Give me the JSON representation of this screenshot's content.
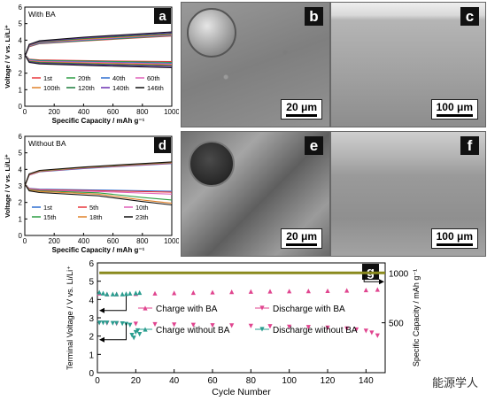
{
  "panels": {
    "a": {
      "label": "a",
      "title": "With BA",
      "ylabel": "Voltage / V vs. Li/Li⁺",
      "xlabel": "Specific Capacity / mAh g⁻¹",
      "xticks": [
        "0",
        "200",
        "400",
        "600",
        "800",
        "1000"
      ],
      "yticks": [
        "0",
        "1",
        "2",
        "3",
        "4",
        "5",
        "6"
      ]
    },
    "b": {
      "label": "b",
      "scale": "20 μm"
    },
    "c": {
      "label": "c",
      "scale": "100 μm"
    },
    "d": {
      "label": "d",
      "title": "Without BA",
      "ylabel": "Voltage / V vs. Li/Li⁺",
      "xlabel": "Specific Capacity / mAh g⁻¹",
      "xticks": [
        "0",
        "200",
        "400",
        "600",
        "800",
        "1000"
      ],
      "yticks": [
        "0",
        "1",
        "2",
        "3",
        "4",
        "5",
        "6"
      ]
    },
    "e": {
      "label": "e",
      "scale": "20 μm"
    },
    "f": {
      "label": "f",
      "scale": "100 μm"
    },
    "g": {
      "label": "g",
      "ylabel": "Terminal Voltage / V vs. Li/Li⁺",
      "ylabel2": "Specific Capacity / mAh g⁻¹",
      "xlabel": "Cycle Number",
      "xticks": [
        "0",
        "20",
        "40",
        "60",
        "80",
        "100",
        "120",
        "140"
      ],
      "yticks": [
        "0",
        "1",
        "2",
        "3",
        "4",
        "5",
        "6"
      ],
      "y2ticks": [
        "500",
        "1000"
      ]
    }
  },
  "watermark": "能源学人",
  "chart_data": [
    {
      "type": "line",
      "panel": "a",
      "title": "With BA",
      "xlabel": "Specific Capacity / mAh g⁻¹",
      "ylabel": "Voltage / V vs. Li/Li⁺",
      "xlim": [
        0,
        1000
      ],
      "ylim": [
        0,
        6
      ],
      "series": [
        {
          "name": "1st",
          "color": "#e8383d",
          "charge": [
            [
              0,
              3.0
            ],
            [
              30,
              3.6
            ],
            [
              100,
              3.78
            ],
            [
              400,
              3.95
            ],
            [
              700,
              4.1
            ],
            [
              1000,
              4.25
            ]
          ],
          "discharge": [
            [
              0,
              3.1
            ],
            [
              30,
              2.85
            ],
            [
              100,
              2.8
            ],
            [
              500,
              2.75
            ],
            [
              1000,
              2.7
            ]
          ]
        },
        {
          "name": "20th",
          "color": "#2e9e44",
          "charge": [
            [
              0,
              3.0
            ],
            [
              30,
              3.62
            ],
            [
              100,
              3.8
            ],
            [
              400,
              3.97
            ],
            [
              700,
              4.12
            ],
            [
              1000,
              4.28
            ]
          ],
          "discharge": [
            [
              0,
              3.1
            ],
            [
              30,
              2.83
            ],
            [
              100,
              2.77
            ],
            [
              500,
              2.72
            ],
            [
              1000,
              2.65
            ]
          ]
        },
        {
          "name": "40th",
          "color": "#2f6fd0",
          "charge": [
            [
              0,
              3.0
            ],
            [
              30,
              3.64
            ],
            [
              100,
              3.82
            ],
            [
              400,
              4.0
            ],
            [
              700,
              4.15
            ],
            [
              1000,
              4.3
            ]
          ],
          "discharge": [
            [
              0,
              3.1
            ],
            [
              30,
              2.8
            ],
            [
              100,
              2.74
            ],
            [
              500,
              2.68
            ],
            [
              1000,
              2.6
            ]
          ]
        },
        {
          "name": "60th",
          "color": "#e060b8",
          "charge": [
            [
              0,
              3.0
            ],
            [
              30,
              3.66
            ],
            [
              100,
              3.85
            ],
            [
              400,
              4.03
            ],
            [
              700,
              4.18
            ],
            [
              1000,
              4.33
            ]
          ],
          "discharge": [
            [
              0,
              3.1
            ],
            [
              30,
              2.77
            ],
            [
              100,
              2.71
            ],
            [
              500,
              2.65
            ],
            [
              1000,
              2.55
            ]
          ]
        },
        {
          "name": "100th",
          "color": "#e0822a",
          "charge": [
            [
              0,
              3.0
            ],
            [
              30,
              3.68
            ],
            [
              100,
              3.88
            ],
            [
              400,
              4.06
            ],
            [
              700,
              4.21
            ],
            [
              1000,
              4.36
            ]
          ],
          "discharge": [
            [
              0,
              3.1
            ],
            [
              30,
              2.74
            ],
            [
              100,
              2.68
            ],
            [
              500,
              2.6
            ],
            [
              1000,
              2.5
            ]
          ]
        },
        {
          "name": "120th",
          "color": "#1a7a3a",
          "charge": [
            [
              0,
              3.0
            ],
            [
              30,
              3.7
            ],
            [
              100,
              3.9
            ],
            [
              400,
              4.1
            ],
            [
              700,
              4.25
            ],
            [
              1000,
              4.4
            ]
          ],
          "discharge": [
            [
              0,
              3.1
            ],
            [
              30,
              2.71
            ],
            [
              100,
              2.64
            ],
            [
              500,
              2.55
            ],
            [
              1000,
              2.45
            ]
          ]
        },
        {
          "name": "140th",
          "color": "#6a2fb0",
          "charge": [
            [
              0,
              3.0
            ],
            [
              30,
              3.72
            ],
            [
              100,
              3.93
            ],
            [
              400,
              4.14
            ],
            [
              700,
              4.3
            ],
            [
              1000,
              4.45
            ]
          ],
          "discharge": [
            [
              0,
              3.1
            ],
            [
              30,
              2.68
            ],
            [
              100,
              2.6
            ],
            [
              500,
              2.5
            ],
            [
              1000,
              2.4
            ]
          ]
        },
        {
          "name": "146th",
          "color": "#111111",
          "charge": [
            [
              0,
              3.0
            ],
            [
              30,
              3.75
            ],
            [
              100,
              3.96
            ],
            [
              400,
              4.18
            ],
            [
              700,
              4.34
            ],
            [
              1000,
              4.5
            ]
          ],
          "discharge": [
            [
              0,
              3.1
            ],
            [
              30,
              2.65
            ],
            [
              100,
              2.56
            ],
            [
              500,
              2.45
            ],
            [
              1000,
              2.33
            ]
          ]
        }
      ]
    },
    {
      "type": "line",
      "panel": "d",
      "title": "Without BA",
      "xlabel": "Specific Capacity / mAh g⁻¹",
      "ylabel": "Voltage / V vs. Li/Li⁺",
      "xlim": [
        0,
        1000
      ],
      "ylim": [
        0,
        6
      ],
      "series": [
        {
          "name": "1st",
          "color": "#2f6fd0",
          "charge": [
            [
              0,
              3.0
            ],
            [
              30,
              3.65
            ],
            [
              100,
              3.85
            ],
            [
              400,
              4.05
            ],
            [
              700,
              4.2
            ],
            [
              1000,
              4.35
            ]
          ],
          "discharge": [
            [
              0,
              3.1
            ],
            [
              30,
              2.85
            ],
            [
              100,
              2.8
            ],
            [
              500,
              2.75
            ],
            [
              1000,
              2.68
            ]
          ]
        },
        {
          "name": "5th",
          "color": "#e8383d",
          "charge": [
            [
              0,
              3.0
            ],
            [
              30,
              3.66
            ],
            [
              100,
              3.87
            ],
            [
              400,
              4.07
            ],
            [
              700,
              4.22
            ],
            [
              1000,
              4.37
            ]
          ],
          "discharge": [
            [
              0,
              3.1
            ],
            [
              30,
              2.83
            ],
            [
              100,
              2.77
            ],
            [
              500,
              2.71
            ],
            [
              1000,
              2.62
            ]
          ]
        },
        {
          "name": "10th",
          "color": "#e060b8",
          "charge": [
            [
              0,
              3.0
            ],
            [
              30,
              3.68
            ],
            [
              100,
              3.89
            ],
            [
              400,
              4.09
            ],
            [
              700,
              4.24
            ],
            [
              1000,
              4.39
            ]
          ],
          "discharge": [
            [
              0,
              3.1
            ],
            [
              30,
              2.8
            ],
            [
              100,
              2.74
            ],
            [
              500,
              2.66
            ],
            [
              1000,
              2.5
            ]
          ]
        },
        {
          "name": "15th",
          "color": "#2e9e44",
          "charge": [
            [
              0,
              3.0
            ],
            [
              30,
              3.7
            ],
            [
              100,
              3.9
            ],
            [
              400,
              4.11
            ],
            [
              700,
              4.26
            ],
            [
              1000,
              4.41
            ]
          ],
          "discharge": [
            [
              0,
              3.1
            ],
            [
              30,
              2.77
            ],
            [
              100,
              2.7
            ],
            [
              500,
              2.58
            ],
            [
              800,
              2.3
            ],
            [
              1000,
              2.15
            ]
          ]
        },
        {
          "name": "18th",
          "color": "#e0822a",
          "charge": [
            [
              0,
              3.0
            ],
            [
              30,
              3.71
            ],
            [
              100,
              3.92
            ],
            [
              400,
              4.12
            ],
            [
              700,
              4.28
            ],
            [
              1000,
              4.43
            ]
          ],
          "discharge": [
            [
              0,
              3.1
            ],
            [
              30,
              2.74
            ],
            [
              100,
              2.66
            ],
            [
              500,
              2.5
            ],
            [
              800,
              2.15
            ],
            [
              1000,
              1.95
            ]
          ]
        },
        {
          "name": "23th",
          "color": "#111111",
          "charge": [
            [
              0,
              3.0
            ],
            [
              30,
              3.73
            ],
            [
              100,
              3.94
            ],
            [
              400,
              4.14
            ],
            [
              700,
              4.3
            ],
            [
              1000,
              4.45
            ]
          ],
          "discharge": [
            [
              0,
              3.1
            ],
            [
              30,
              2.7
            ],
            [
              100,
              2.6
            ],
            [
              500,
              2.4
            ],
            [
              800,
              2.05
            ],
            [
              1000,
              1.85
            ]
          ]
        }
      ]
    },
    {
      "type": "scatter",
      "panel": "g",
      "xlabel": "Cycle Number",
      "ylabel": "Terminal Voltage / V vs. Li/Li⁺",
      "ylabel2": "Specific Capacity / mAh g⁻¹",
      "xlim": [
        0,
        150
      ],
      "ylim": [
        0,
        6
      ],
      "y2lim": [
        0,
        1100
      ],
      "series": [
        {
          "name": "Charge with BA",
          "color": "#e0458f",
          "marker": "triangle-up",
          "x": [
            1,
            5,
            10,
            20,
            30,
            40,
            50,
            60,
            70,
            80,
            90,
            100,
            110,
            120,
            130,
            140,
            146
          ],
          "y": [
            4.35,
            4.3,
            4.3,
            4.32,
            4.34,
            4.36,
            4.38,
            4.4,
            4.42,
            4.44,
            4.45,
            4.46,
            4.47,
            4.48,
            4.5,
            4.52,
            4.55
          ]
        },
        {
          "name": "Discharge with BA",
          "color": "#e0458f",
          "marker": "triangle-down",
          "x": [
            1,
            5,
            10,
            20,
            30,
            40,
            50,
            60,
            70,
            80,
            90,
            100,
            110,
            120,
            130,
            135,
            140,
            143,
            146
          ],
          "y": [
            2.72,
            2.7,
            2.68,
            2.66,
            2.64,
            2.62,
            2.6,
            2.58,
            2.57,
            2.55,
            2.53,
            2.5,
            2.48,
            2.45,
            2.4,
            2.35,
            2.28,
            2.18,
            2.02
          ]
        },
        {
          "name": "Charge without BA",
          "color": "#2a9d8f",
          "marker": "triangle-up",
          "x": [
            1,
            3,
            5,
            8,
            10,
            13,
            15,
            17,
            20,
            22
          ],
          "y": [
            4.4,
            4.35,
            4.3,
            4.3,
            4.3,
            4.3,
            4.32,
            4.34,
            4.36,
            4.38
          ]
        },
        {
          "name": "Discharge without BA",
          "color": "#2a9d8f",
          "marker": "triangle-down",
          "x": [
            1,
            3,
            5,
            8,
            10,
            13,
            15,
            17,
            18,
            19,
            20,
            21,
            22
          ],
          "y": [
            2.72,
            2.72,
            2.72,
            2.7,
            2.7,
            2.68,
            2.65,
            2.6,
            2.05,
            1.9,
            2.2,
            2.3,
            2.1
          ]
        },
        {
          "name": "Specific Capacity",
          "color": "#8a8a1e",
          "marker": "square",
          "x": [
            1,
            150
          ],
          "y2": [
            1000,
            1000
          ]
        }
      ]
    }
  ]
}
